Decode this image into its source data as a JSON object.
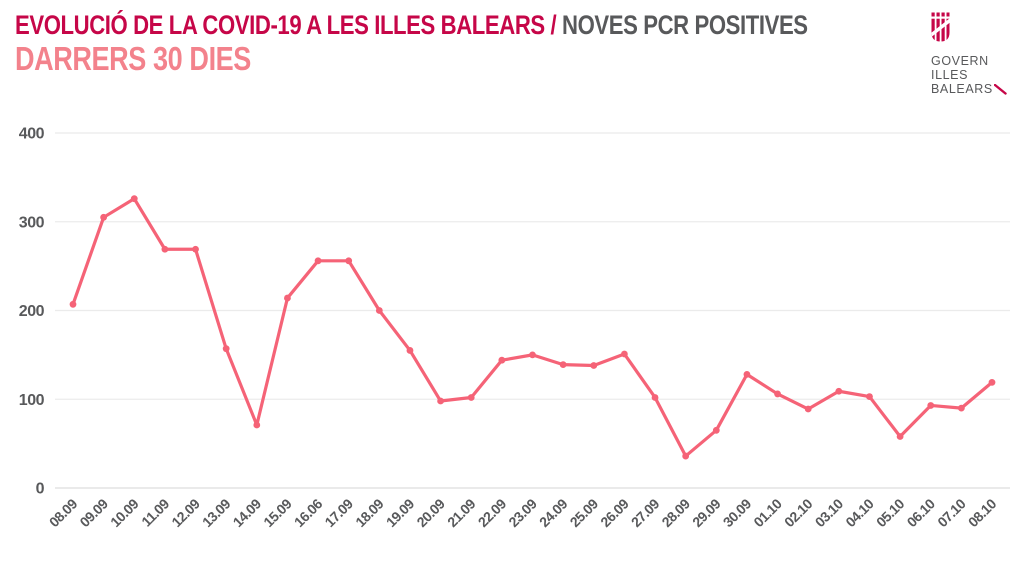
{
  "header": {
    "title_main": "EVOLUCIÓ DE LA COVID-19 A LES ILLES BALEARS / ",
    "title_secondary": "NOVES PCR POSITIVES",
    "subtitle": "DARRERS 30 DIES"
  },
  "logo": {
    "line1": "GOVERN",
    "line2": "ILLES",
    "line3": "BALEARS"
  },
  "colors": {
    "title_crimson": "#c60648",
    "subtitle_pink": "#f3828c",
    "line_pink": "#f56377",
    "text_gray": "#58595b",
    "gridline": "#ebebeb",
    "baseline": "#dedede"
  },
  "chart_data": {
    "type": "line",
    "title": "EVOLUCIÓ DE LA COVID-19 A LES ILLES BALEARS / NOVES PCR POSITIVES — DARRERS 30 DIES",
    "x": [
      "08.09",
      "09.09",
      "10.09",
      "11.09",
      "12.09",
      "13.09",
      "14.09",
      "15.09",
      "16.06",
      "17.09",
      "18.09",
      "19.09",
      "20.09",
      "21.09",
      "22.09",
      "23.09",
      "24.09",
      "25.09",
      "26.09",
      "27.09",
      "28.09",
      "29.09",
      "30.09",
      "01.10",
      "02.10",
      "03.10",
      "04.10",
      "05.10",
      "06.10",
      "07.10",
      "08.10"
    ],
    "values": [
      207,
      305,
      326,
      269,
      269,
      157,
      71,
      214,
      256,
      256,
      200,
      155,
      98,
      102,
      144,
      150,
      139,
      138,
      151,
      102,
      36,
      65,
      128,
      106,
      89,
      109,
      103,
      58,
      93,
      90,
      119
    ],
    "xlabel": "",
    "ylabel": "",
    "ylim": [
      0,
      400
    ],
    "yticks": [
      0,
      100,
      200,
      300,
      400
    ],
    "grid": true,
    "legend": "none",
    "line_color": "#f56377",
    "marker": "circle"
  }
}
